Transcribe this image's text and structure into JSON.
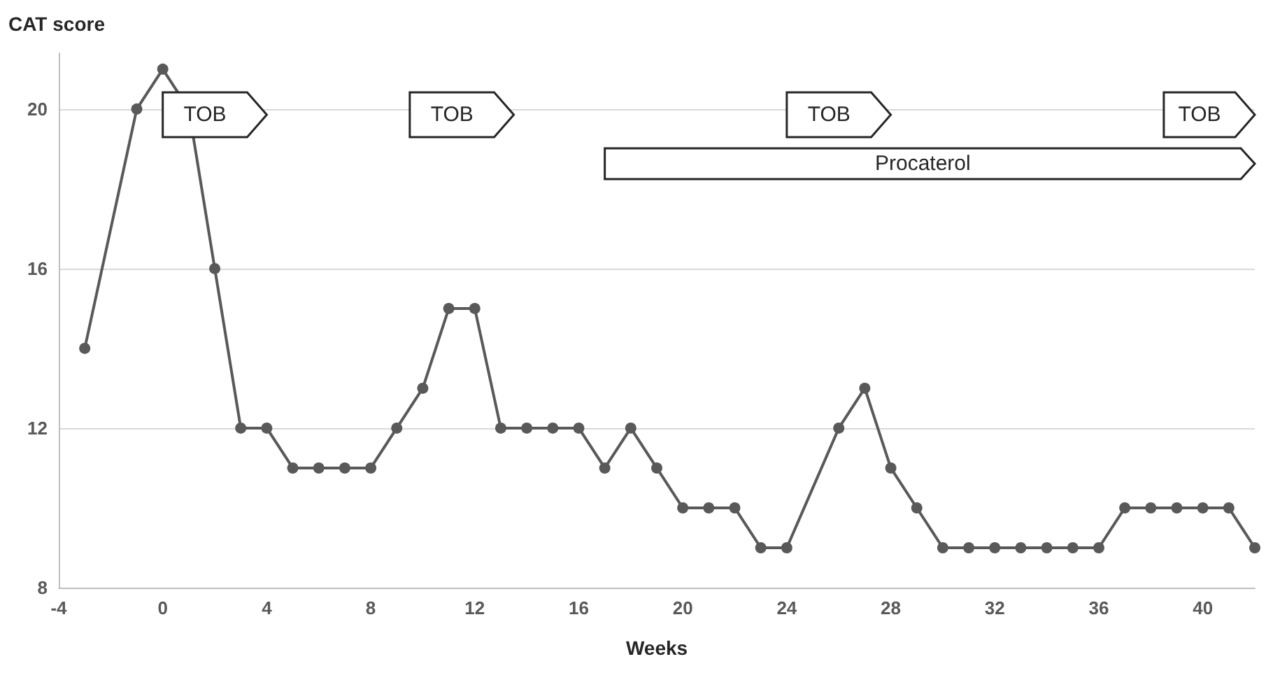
{
  "chart_data": {
    "type": "line",
    "ylabel": "CAT score",
    "xlabel": "Weeks",
    "x": [
      -3,
      -1,
      0,
      1,
      2,
      3,
      4,
      5,
      6,
      7,
      8,
      9,
      10,
      11,
      12,
      13,
      14,
      15,
      16,
      17,
      18,
      19,
      20,
      21,
      22,
      23,
      24,
      26,
      27,
      28,
      29,
      30,
      31,
      32,
      33,
      34,
      35,
      36,
      37,
      38,
      39,
      40,
      41,
      42
    ],
    "series": [
      {
        "color": "#595959",
        "values": [
          14,
          20,
          21,
          20,
          16,
          12,
          12,
          11,
          11,
          11,
          11,
          12,
          13,
          15,
          15,
          12,
          12,
          12,
          12,
          11,
          12,
          11,
          10,
          10,
          10,
          9,
          9,
          12,
          13,
          11,
          10,
          9,
          9,
          9,
          9,
          9,
          9,
          9,
          10,
          10,
          10,
          10,
          10,
          9
        ]
      }
    ],
    "xlim": [
      -4,
      42
    ],
    "xticks": [
      -4,
      0,
      4,
      8,
      12,
      16,
      20,
      24,
      28,
      32,
      36,
      40
    ],
    "ylim": [
      8,
      21.4
    ],
    "yticks": [
      8,
      12,
      16,
      20
    ],
    "grid": "y",
    "marker": "circle",
    "line_style": "solid",
    "bands": [
      {
        "axis": "x",
        "from": 0,
        "to": 4,
        "label": "TOB",
        "color": "#ffffff"
      },
      {
        "axis": "x",
        "from": 9.5,
        "to": 13.5,
        "label": "TOB",
        "color": "#ffffff"
      },
      {
        "axis": "x",
        "from": 24,
        "to": 28,
        "label": "TOB",
        "color": "#ffffff"
      },
      {
        "axis": "x",
        "from": 38.5,
        "to": 42,
        "label": "TOB",
        "color": "#ffffff"
      },
      {
        "axis": "x",
        "from": 17,
        "to": 42,
        "label": "Procaterol",
        "color": "#ffffff"
      }
    ]
  }
}
